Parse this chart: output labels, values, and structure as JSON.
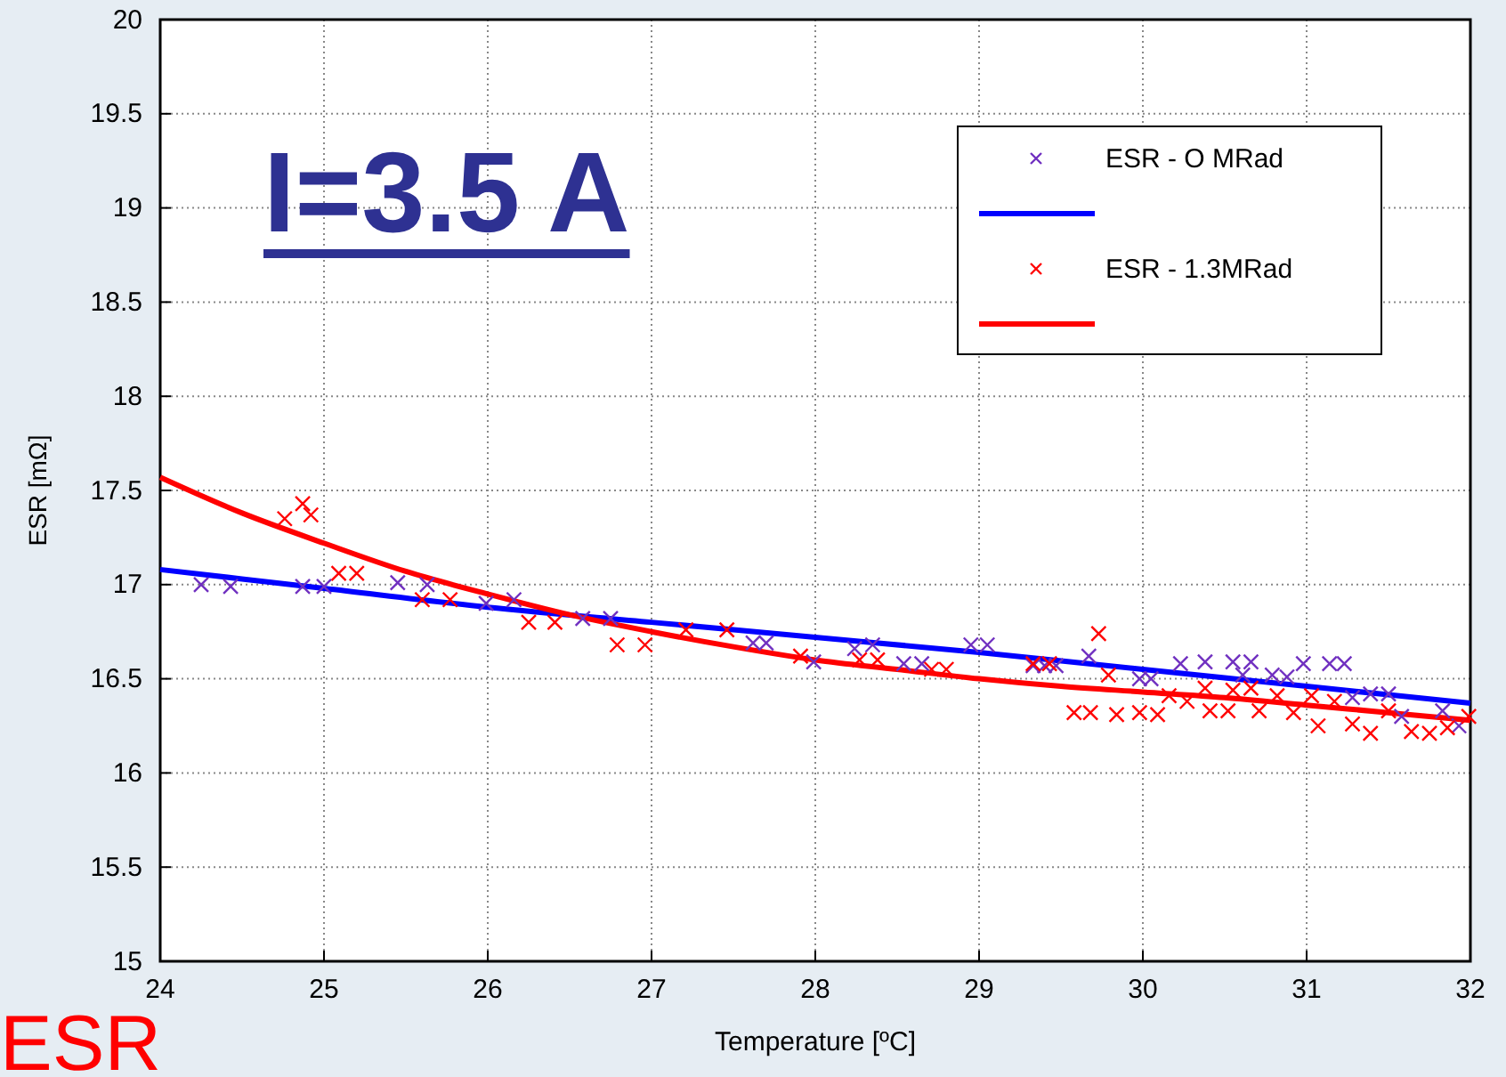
{
  "chart_data": {
    "type": "scatter",
    "xlabel": "Temperature [ºC]",
    "ylabel": "ESR [mΩ]",
    "xlim": [
      24,
      32
    ],
    "ylim": [
      15,
      20
    ],
    "xticks": [
      24,
      25,
      26,
      27,
      28,
      29,
      30,
      31,
      32
    ],
    "yticks": [
      15,
      15.5,
      16,
      16.5,
      17,
      17.5,
      18,
      18.5,
      19,
      19.5,
      20
    ],
    "grid": true,
    "legend": "top right",
    "marker": "cross",
    "annotations": [
      "I=3.5 A",
      "ESR"
    ],
    "series": [
      {
        "name": "ESR - O MRad",
        "color": "#7030c0",
        "x": [
          24.25,
          24.43,
          24.87,
          25.0,
          25.45,
          25.63,
          25.99,
          26.16,
          26.58,
          26.75,
          27.62,
          27.7,
          27.99,
          28.24,
          28.35,
          28.54,
          28.65,
          28.95,
          29.05,
          29.33,
          29.47,
          29.4,
          29.67,
          29.98,
          30.05,
          30.23,
          30.38,
          30.55,
          30.66,
          30.61,
          30.79,
          30.88,
          30.98,
          31.14,
          31.23,
          31.28,
          31.39,
          31.5,
          31.58,
          31.83,
          31.93
        ],
        "values": [
          17.0,
          16.99,
          16.99,
          16.99,
          17.01,
          17.0,
          16.9,
          16.92,
          16.82,
          16.82,
          16.69,
          16.69,
          16.59,
          16.66,
          16.68,
          16.58,
          16.58,
          16.68,
          16.68,
          16.57,
          16.57,
          16.57,
          16.62,
          16.5,
          16.5,
          16.58,
          16.59,
          16.59,
          16.59,
          16.52,
          16.52,
          16.51,
          16.58,
          16.58,
          16.58,
          16.4,
          16.42,
          16.42,
          16.3,
          16.33,
          16.25
        ]
      },
      {
        "type": "line",
        "marker": "none",
        "color": "#0000ff",
        "x": [
          24,
          25,
          26,
          27,
          28,
          29,
          30,
          31,
          32
        ],
        "values": [
          17.08,
          16.98,
          16.88,
          16.8,
          16.72,
          16.64,
          16.55,
          16.46,
          16.37
        ]
      },
      {
        "name": "ESR - 1.3MRad",
        "color": "#ff0000",
        "x": [
          24.76,
          24.87,
          24.92,
          25.09,
          25.2,
          25.6,
          25.77,
          26.25,
          26.41,
          26.79,
          26.96,
          27.21,
          27.46,
          27.91,
          28.27,
          28.38,
          28.71,
          28.8,
          29.33,
          29.43,
          29.73,
          29.79,
          29.58,
          29.68,
          29.84,
          29.98,
          30.09,
          30.16,
          30.27,
          30.38,
          30.41,
          30.52,
          30.55,
          30.66,
          30.71,
          30.82,
          30.92,
          31.03,
          31.07,
          31.17,
          31.28,
          31.39,
          31.5,
          31.64,
          31.75,
          31.86,
          31.99
        ],
        "values": [
          17.35,
          17.43,
          17.37,
          17.06,
          17.06,
          16.92,
          16.92,
          16.8,
          16.8,
          16.68,
          16.68,
          16.76,
          16.76,
          16.62,
          16.6,
          16.6,
          16.55,
          16.55,
          16.58,
          16.58,
          16.74,
          16.52,
          16.32,
          16.32,
          16.31,
          16.32,
          16.31,
          16.41,
          16.38,
          16.45,
          16.33,
          16.33,
          16.44,
          16.45,
          16.33,
          16.41,
          16.32,
          16.41,
          16.25,
          16.38,
          16.26,
          16.21,
          16.33,
          16.22,
          16.21,
          16.24,
          16.3
        ]
      },
      {
        "type": "line",
        "marker": "none",
        "color": "#ff0000",
        "x": [
          24,
          24.5,
          25,
          25.5,
          26,
          26.5,
          27,
          27.5,
          28,
          28.5,
          29,
          29.5,
          30,
          30.5,
          31,
          31.5,
          32
        ],
        "values": [
          17.57,
          17.38,
          17.22,
          17.07,
          16.95,
          16.84,
          16.75,
          16.67,
          16.6,
          16.55,
          16.5,
          16.46,
          16.43,
          16.4,
          16.36,
          16.32,
          16.28
        ]
      }
    ]
  }
}
